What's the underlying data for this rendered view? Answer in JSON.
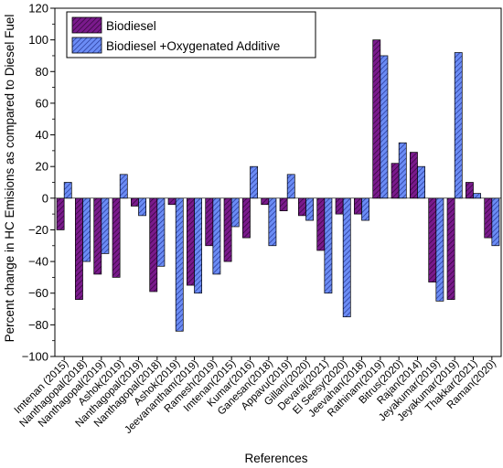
{
  "chart_data": {
    "type": "bar",
    "title": "",
    "xlabel": "References",
    "ylabel": "Percent change in HC Emisions as compared to Diesel Fuel",
    "ylim": [
      -100,
      120
    ],
    "yticks": [
      -100,
      -80,
      -60,
      -40,
      -20,
      0,
      20,
      40,
      60,
      80,
      100,
      120
    ],
    "legend_position": "top-left",
    "categories": [
      "Imtenan (2015)",
      "Nanthagopal(2018)",
      "Nanthagopal(2019)",
      "Ashok(2019)",
      "Nanthagopal(2019)",
      "Nanthagopal(2018)",
      "Ashok(2019)",
      "Jeevanantham(2019)",
      "Ramesh(2019)",
      "Imtenan(2015)",
      "Kumar(2016)",
      "Ganesan(2018)",
      "Appavu(2019)",
      "Gillani(2020)",
      "Devaraj(2021)",
      "El Seesy(2020)",
      "Jeevahan(2018)",
      "Rathinam(2019)",
      "Bitrus(2020)",
      "Rajan(2014)",
      "Jeyakumar(2019)",
      "Jeyakumar(2019)",
      "Thakkar(2021)",
      "Raman(2020)"
    ],
    "series": [
      {
        "name": "Biodiesel",
        "color": "#7a1a8c",
        "hatch": "purple-hatch",
        "values": [
          -20,
          -64,
          -48,
          -50,
          -5,
          -59,
          -4,
          -55,
          -30,
          -40,
          -25,
          -4,
          -8,
          -11,
          -33,
          -10,
          -10,
          100,
          22,
          29,
          -53,
          -64,
          10,
          -25
        ]
      },
      {
        "name": "Biodiesel +Oxygenated Additive",
        "color": "#5a7df0",
        "hatch": "blue-hatch",
        "values": [
          10,
          -40,
          -35,
          15,
          -11,
          -43,
          -84,
          -60,
          -48,
          -18,
          20,
          -30,
          15,
          -14,
          -60,
          -75,
          -14,
          90,
          35,
          20,
          -65,
          92,
          3,
          -30
        ]
      }
    ]
  }
}
